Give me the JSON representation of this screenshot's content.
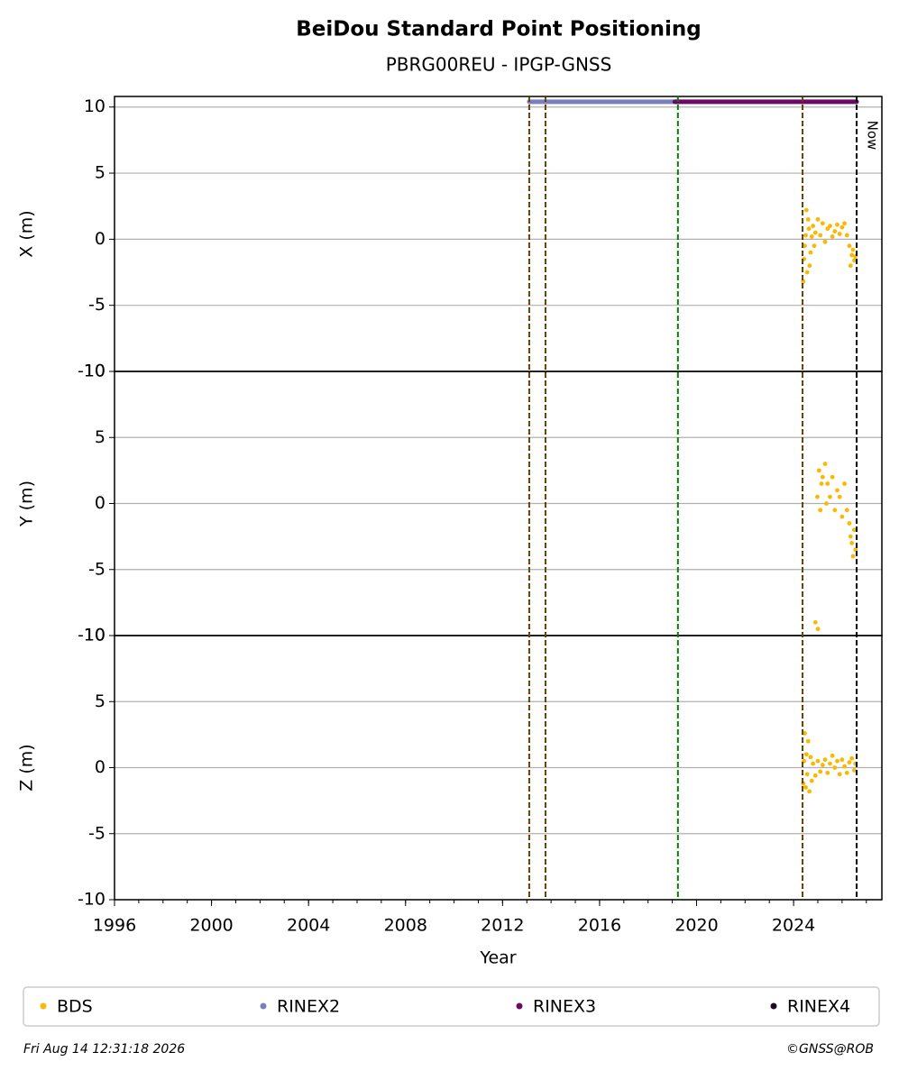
{
  "title": "BeiDou Standard Point Positioning",
  "subtitle": "PBRG00REU - IPGP-GNSS",
  "footer": {
    "date": "Fri Aug 14 12:31:18 2026",
    "credit": "©GNSS@ROB"
  },
  "now": {
    "x": 2026.6,
    "label": "Now",
    "color": "#000000"
  },
  "events": [
    {
      "x": 2013.1,
      "colors": [
        "#008000",
        "#d00000"
      ]
    },
    {
      "x": 2013.77,
      "colors": [
        "#008000",
        "#d00000"
      ]
    },
    {
      "x": 2019.23,
      "colors": [
        "#008000"
      ]
    },
    {
      "x": 2024.37,
      "colors": [
        "#008000",
        "#d00000"
      ]
    }
  ],
  "chart_data": [
    {
      "type": "scatter",
      "ylabel": "X (m)",
      "xlim": [
        1996,
        2027.64
      ],
      "ylim": [
        -10,
        10.8
      ],
      "yticks": [
        -10,
        -5,
        0,
        5,
        10
      ],
      "grid": true,
      "series": [
        {
          "name": "BDS",
          "color": "#fbb800",
          "x": [
            2024.4,
            2024.43,
            2024.46,
            2024.5,
            2024.53,
            2024.56,
            2024.6,
            2024.63,
            2024.66,
            2024.7,
            2024.75,
            2024.8,
            2024.85,
            2024.9,
            2025.0,
            2025.1,
            2025.2,
            2025.3,
            2025.4,
            2025.5,
            2025.6,
            2025.7,
            2025.8,
            2025.9,
            2026.0,
            2026.1,
            2026.2,
            2026.3,
            2026.35,
            2026.4,
            2026.45,
            2026.5,
            2026.55
          ],
          "y": [
            -3.2,
            -1.5,
            -0.5,
            0.3,
            2.2,
            -2.5,
            1.5,
            0.8,
            -2.0,
            -1.0,
            0.2,
            1.0,
            -0.5,
            0.5,
            1.5,
            0.3,
            1.2,
            -0.2,
            0.8,
            1.0,
            0.2,
            0.6,
            1.1,
            0.4,
            0.9,
            1.2,
            0.3,
            -0.5,
            -2.0,
            -1.2,
            -0.8,
            -1.6,
            -1.3
          ]
        },
        {
          "name": "RINEX2",
          "color": "#7b7fbf",
          "x": [
            2013.1,
            2019.23
          ],
          "y": [
            10.4,
            10.4
          ]
        },
        {
          "name": "RINEX3",
          "color": "#6a0a66",
          "x": [
            2019.1,
            2026.6
          ],
          "y": [
            10.4,
            10.4
          ]
        },
        {
          "name": "RINEX4",
          "color": "#1f0a24",
          "x": [],
          "y": []
        }
      ]
    },
    {
      "type": "scatter",
      "ylabel": "Y (m)",
      "xlim": [
        1996,
        2027.64
      ],
      "ylim": [
        -10,
        10
      ],
      "yticks": [
        -10,
        -5,
        0,
        5,
        10
      ],
      "grid": true,
      "series": [
        {
          "name": "BDS",
          "color": "#fbb800",
          "x": [
            2024.9,
            2025.0,
            2024.98,
            2025.05,
            2025.1,
            2025.15,
            2025.2,
            2025.3,
            2025.35,
            2025.4,
            2025.5,
            2025.6,
            2025.7,
            2025.8,
            2025.9,
            2026.0,
            2026.1,
            2026.2,
            2026.3,
            2026.35,
            2026.4,
            2026.45,
            2026.5,
            2026.55
          ],
          "y": [
            -9.0,
            -9.5,
            0.5,
            2.5,
            -0.5,
            1.5,
            2.0,
            3.0,
            0.0,
            1.5,
            0.5,
            2.0,
            -0.5,
            1.0,
            0.5,
            -1.0,
            1.5,
            -0.5,
            -1.5,
            -2.5,
            -3.0,
            -4.0,
            -2.0,
            -3.5
          ]
        },
        {
          "name": "BDS",
          "color": "#fbb800",
          "x": [],
          "y": []
        }
      ]
    },
    {
      "type": "scatter",
      "ylabel": "Z (m)",
      "xlim": [
        1996,
        2027.64
      ],
      "ylim": [
        -10,
        10
      ],
      "yticks": [
        -10,
        -5,
        0,
        5,
        10
      ],
      "grid": true,
      "xlabel": "Year",
      "xticks": [
        1996,
        2000,
        2004,
        2008,
        2012,
        2016,
        2020,
        2024
      ],
      "minor_step": 1,
      "series": [
        {
          "name": "BDS",
          "color": "#fbb800",
          "x": [
            2024.4,
            2024.43,
            2024.46,
            2024.5,
            2024.53,
            2024.56,
            2024.6,
            2024.65,
            2024.7,
            2024.75,
            2024.8,
            2024.9,
            2025.0,
            2025.1,
            2025.2,
            2025.3,
            2025.4,
            2025.5,
            2025.6,
            2025.7,
            2025.8,
            2025.9,
            2026.0,
            2026.1,
            2026.2,
            2026.3,
            2026.4,
            2026.5,
            2026.55
          ],
          "y": [
            -1.2,
            0.5,
            2.6,
            -1.5,
            1.0,
            -0.5,
            2.0,
            -1.8,
            0.8,
            -1.0,
            0.3,
            -0.6,
            0.5,
            -0.3,
            0.2,
            0.6,
            -0.4,
            0.3,
            0.9,
            0.0,
            0.5,
            -0.5,
            0.6,
            0.1,
            -0.4,
            0.4,
            0.7,
            -0.2,
            0.3
          ]
        }
      ]
    }
  ]
}
